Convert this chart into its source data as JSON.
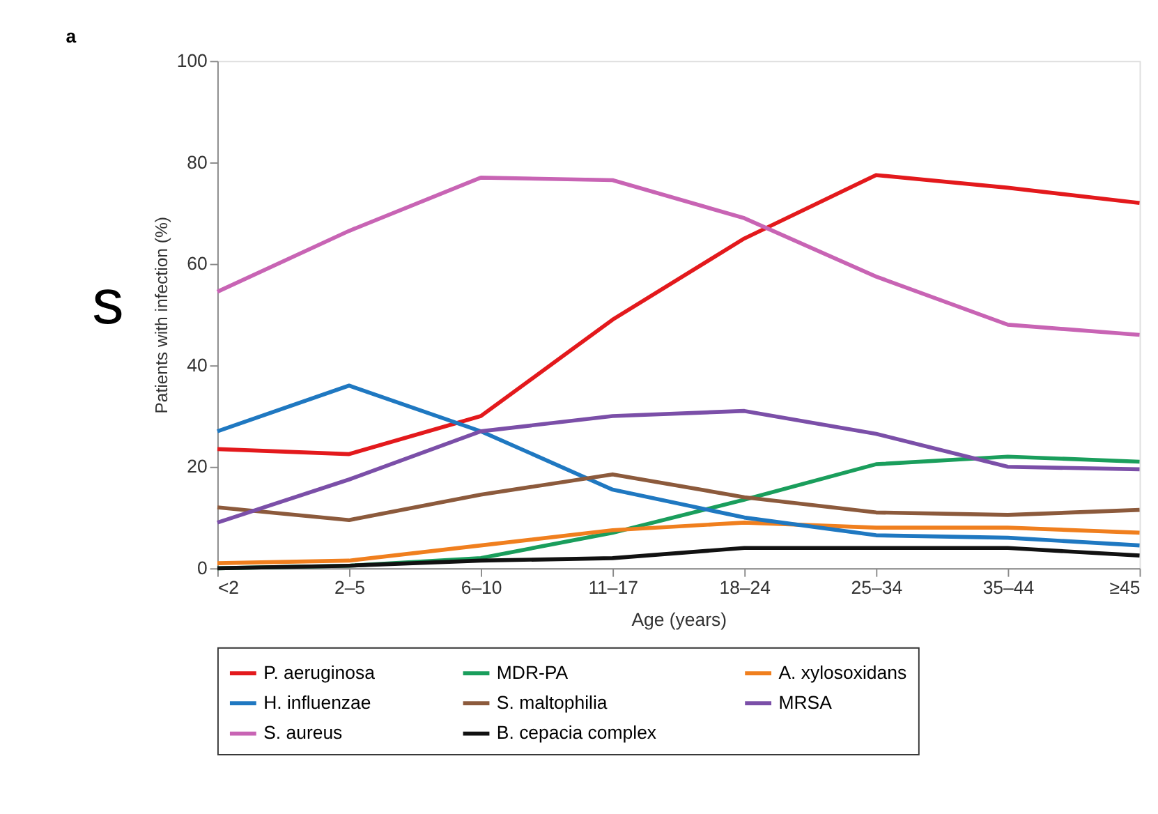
{
  "chart_data": {
    "type": "line",
    "title": "a",
    "xlabel": "Age (years)",
    "ylabel": "Patients with infection (%)",
    "categories": [
      "<2",
      "2–5",
      "6–10",
      "11–17",
      "18–24",
      "25–34",
      "35–44",
      "≥45"
    ],
    "ylim": [
      0,
      100
    ],
    "yticks": [
      0,
      20,
      40,
      60,
      80,
      100
    ],
    "grid": false,
    "legend": "bottom",
    "marker": "none",
    "line_style": "solid",
    "annotations": [
      "s"
    ],
    "series": [
      {
        "name": "P. aeruginosa",
        "color": "#e3191c",
        "values": [
          23.5,
          22.5,
          30,
          49,
          65,
          77.5,
          75,
          72
        ]
      },
      {
        "name": "MDR-PA",
        "color": "#1a9e5c",
        "values": [
          0,
          0.5,
          2,
          7,
          13.5,
          20.5,
          22,
          21
        ]
      },
      {
        "name": "A. xylosoxidans",
        "color": "#f07f1e",
        "values": [
          1,
          1.5,
          4.5,
          7.5,
          9,
          8,
          8,
          7
        ]
      },
      {
        "name": "H. influenzae",
        "color": "#1f78c1",
        "values": [
          27,
          36,
          27,
          15.5,
          10,
          6.5,
          6,
          4.5
        ]
      },
      {
        "name": "S. maltophilia",
        "color": "#8c5a3c",
        "values": [
          12,
          9.5,
          14.5,
          18.5,
          14,
          11,
          10.5,
          11.5
        ]
      },
      {
        "name": "MRSA",
        "color": "#7b4fa8",
        "values": [
          9,
          17.5,
          27,
          30,
          31,
          26.5,
          20,
          19.5
        ]
      },
      {
        "name": "S. aureus",
        "color": "#c864b4",
        "values": [
          54.5,
          66.5,
          77,
          76.5,
          69,
          57.5,
          48,
          46
        ]
      },
      {
        "name": "B. cepacia complex",
        "color": "#111111",
        "values": [
          0,
          0.5,
          1.5,
          2,
          4,
          4,
          4,
          2.5
        ]
      }
    ]
  }
}
